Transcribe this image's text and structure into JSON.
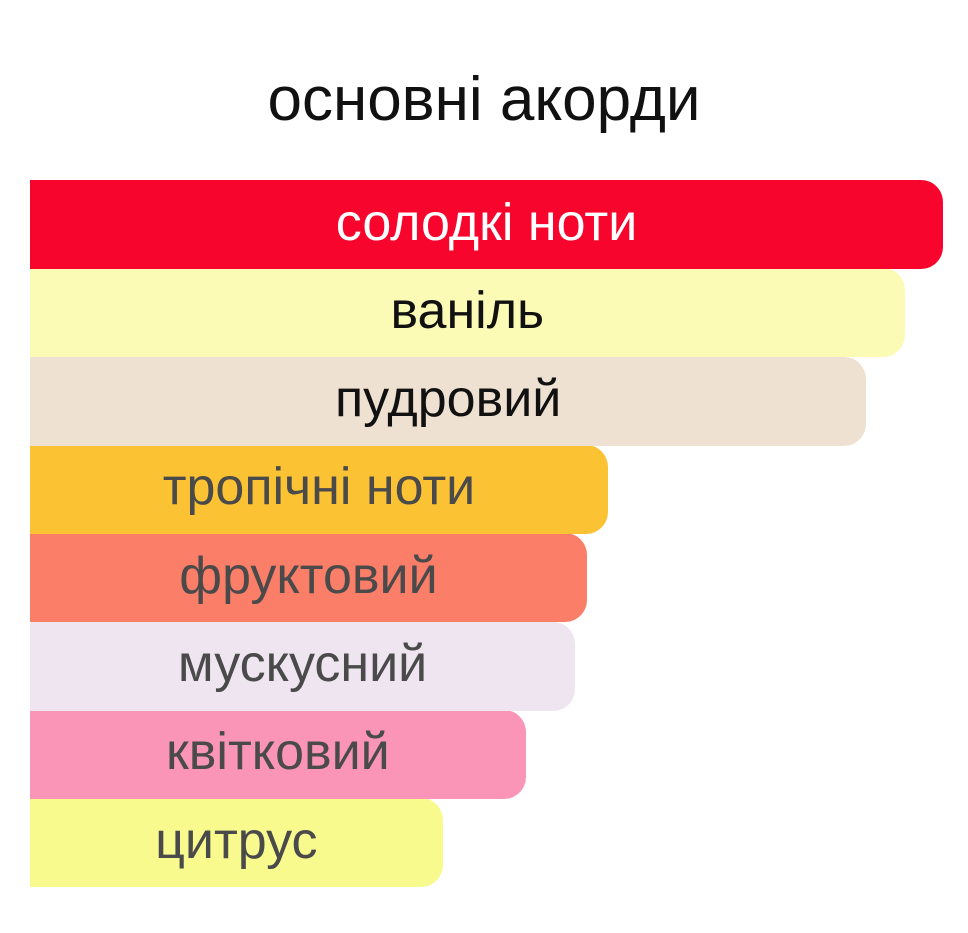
{
  "title": "основні акорди",
  "chart_data": {
    "type": "bar",
    "orientation": "horizontal",
    "title": "основні акорди",
    "categories": [
      "солодкі ноти",
      "ваніль",
      "пудровий",
      "тропічні ноти",
      "фруктовий",
      "мускусний",
      "квітковий",
      "цитрус"
    ],
    "values": [
      100,
      95.8,
      91.6,
      63.3,
      61.0,
      59.7,
      54.3,
      45.2
    ],
    "colors": [
      "#f8052d",
      "#fbfbb6",
      "#efe1d1",
      "#fbc234",
      "#fb7e69",
      "#eee5f0",
      "#fa95b8",
      "#f9fa8d"
    ],
    "text_colors": [
      "#ffffff",
      "#111111",
      "#111111",
      "#4a4a4a",
      "#4a4a4a",
      "#4a4a4a",
      "#4a4a4a",
      "#4a4a4a"
    ],
    "xlim": [
      0,
      100
    ],
    "grid": false,
    "legend": "none"
  }
}
